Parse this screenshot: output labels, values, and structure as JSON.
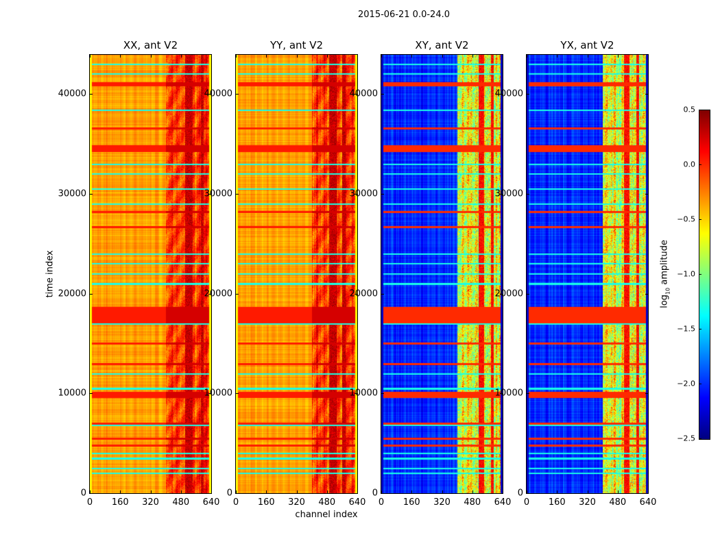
{
  "chart_data": {
    "type": "heatmap",
    "title": "2015-06-21 0.0-24.0",
    "xlabel": "channel index",
    "ylabel": "time index",
    "xlim": [
      0,
      640
    ],
    "ylim": [
      0,
      43920
    ],
    "xticks": [
      "0",
      "160",
      "320",
      "480",
      "640"
    ],
    "yticks": [
      "0",
      "10000",
      "20000",
      "30000",
      "40000"
    ],
    "colorbar": {
      "label_prefix": "log",
      "label_sub": "10",
      "label_suffix": " amplitude",
      "vmin": -2.5,
      "vmax": 0.5,
      "colormap": "jet",
      "ticks": [
        "0.5",
        "0.0",
        "−0.5",
        "−1.0",
        "−1.5",
        "−2.0",
        "−2.5"
      ]
    },
    "panels": [
      {
        "title": "XX, ant V2",
        "base_low_channels": -0.35,
        "base_high_channels": -0.05,
        "hot_columns": [
          [
            500,
            540
          ],
          [
            585,
            600
          ]
        ],
        "hot_value": 0.3
      },
      {
        "title": "YY, ant V2",
        "base_low_channels": -0.35,
        "base_high_channels": -0.05,
        "hot_columns": [
          [
            490,
            530
          ],
          [
            560,
            575
          ]
        ],
        "hot_value": 0.3
      },
      {
        "title": "XY, ant V2",
        "base_low_channels": -2.0,
        "base_high_channels": -0.7,
        "hot_columns": [
          [
            510,
            540
          ],
          [
            575,
            590
          ]
        ],
        "hot_value": 0.1
      },
      {
        "title": "YX, ant V2",
        "base_low_channels": -2.0,
        "base_high_channels": -0.7,
        "hot_columns": [
          [
            510,
            540
          ],
          [
            575,
            590
          ]
        ],
        "hot_value": 0.1
      }
    ],
    "high_channel_start": 400,
    "red_bands_time": [
      [
        34200,
        34900
      ],
      [
        9600,
        10200
      ],
      [
        17000,
        18700
      ],
      [
        36500,
        36700
      ],
      [
        40800,
        41200
      ],
      [
        28100,
        28300
      ],
      [
        26600,
        26800
      ],
      [
        14900,
        15100
      ],
      [
        12900,
        13100
      ],
      [
        6900,
        7100
      ],
      [
        5400,
        5600
      ],
      [
        4700,
        4900
      ]
    ],
    "cyan_lines_time": [
      43000,
      42000,
      38400,
      33000,
      32000,
      30500,
      29000,
      24000,
      23000,
      22000,
      21000,
      17000,
      12000,
      10500,
      6800,
      4000,
      3500,
      2500,
      2000
    ]
  }
}
